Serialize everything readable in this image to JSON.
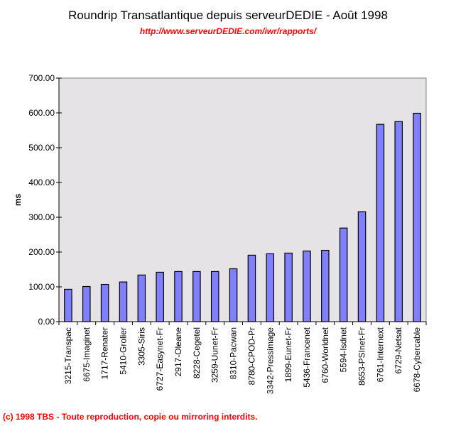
{
  "chart_data": {
    "type": "bar",
    "title": "Roundrip Transatlantique depuis serveurDEDIE - Août 1998",
    "subtitle": "http://www.serveurDEDIE.com/iwr/rapports/",
    "xlabel": "",
    "ylabel": "ms",
    "ylim": [
      0,
      700
    ],
    "yticks": [
      "0.00",
      "100.00",
      "200.00",
      "300.00",
      "400.00",
      "500.00",
      "600.00",
      "700.00"
    ],
    "grid": false,
    "categories": [
      "3215-Transpac",
      "6675-Imaginet",
      "1717-Renater",
      "5410-Grolier",
      "3305-Siris",
      "6727-Easynet-Fr",
      "2917-Oleane",
      "8228-Cegetel",
      "3259-Uunet-Fr",
      "8310-Pacwan",
      "8780-CPOD-Pr",
      "3342-Pressimage",
      "1899-Eunet-Fr",
      "5436-Francenet",
      "6760-Worldnet",
      "5594-Isdnet",
      "8653-PSInet-Fr",
      "6761-Internext",
      "6729-Netsat",
      "6678-Cybercable"
    ],
    "values": [
      93,
      101,
      107,
      114,
      134,
      142,
      144,
      144,
      144,
      152,
      191,
      195,
      197,
      203,
      205,
      269,
      316,
      567,
      575,
      599
    ],
    "colors": {
      "bar": "#8080ff",
      "plot_bg": "#e6e3e6",
      "outline": "#000000"
    }
  },
  "footer": "(c) 1998 TBS - Toute reproduction, copie ou mirroring interdits."
}
